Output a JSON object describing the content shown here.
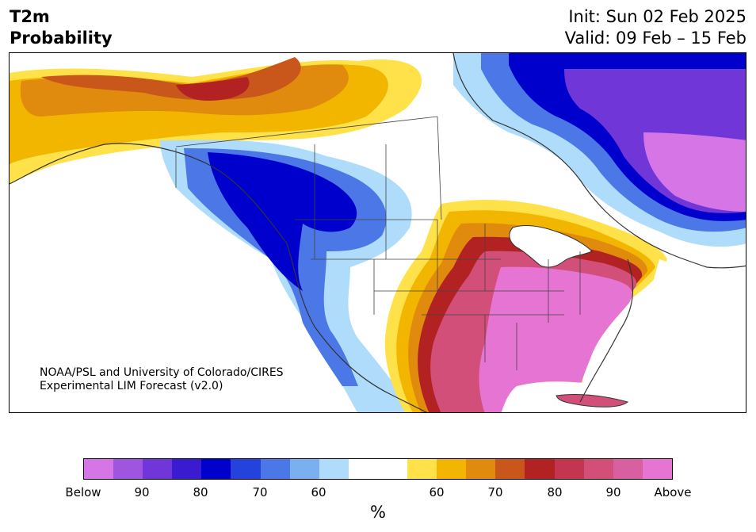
{
  "header": {
    "title_line1": "T2m",
    "title_line2": "Probability",
    "init": "Init: Sun 02 Feb 2025",
    "valid": "Valid: 09 Feb – 15 Feb"
  },
  "credit": {
    "line1": "NOAA/PSL and University of Colorado/CIRES",
    "line2": "Experimental LIM Forecast (v2.0)"
  },
  "colorbar": {
    "colors": [
      "#d675e6",
      "#a055e0",
      "#7136d8",
      "#3a1bd0",
      "#0000cc",
      "#2343dc",
      "#4b78e6",
      "#7aaff0",
      "#aedcfa",
      "#ffffff",
      "#ffffff",
      "#ffe14a",
      "#f2b600",
      "#e08a0e",
      "#c9561a",
      "#b22222",
      "#c43650",
      "#d24f7a",
      "#d960a0",
      "#e674d2"
    ],
    "tick_labels": [
      "Below",
      "90",
      "80",
      "70",
      "60",
      "60",
      "70",
      "80",
      "90",
      "Above"
    ],
    "unit": "%"
  },
  "map": {
    "regions": [
      {
        "name": "alaska-warm-outer",
        "color": "#ffe14a"
      },
      {
        "name": "alaska-warm-mid",
        "color": "#f2b600"
      },
      {
        "name": "alaska-warm-inner",
        "color": "#e08a0e"
      },
      {
        "name": "alaska-warm-core",
        "color": "#b22222"
      },
      {
        "name": "west-cold-outer",
        "color": "#aedcfa"
      },
      {
        "name": "west-cold-mid",
        "color": "#4b78e6"
      },
      {
        "name": "west-cold-core",
        "color": "#0000cc"
      },
      {
        "name": "east-canada-cold",
        "color": "#7136d8"
      },
      {
        "name": "east-canada-core",
        "color": "#d675e6"
      },
      {
        "name": "south-warm-outer",
        "color": "#ffe14a"
      },
      {
        "name": "south-warm-mid",
        "color": "#f2b600"
      },
      {
        "name": "south-warm-inner",
        "color": "#b22222"
      },
      {
        "name": "south-warm-core",
        "color": "#d24f7a"
      },
      {
        "name": "southeast-core",
        "color": "#e674d2"
      }
    ]
  }
}
